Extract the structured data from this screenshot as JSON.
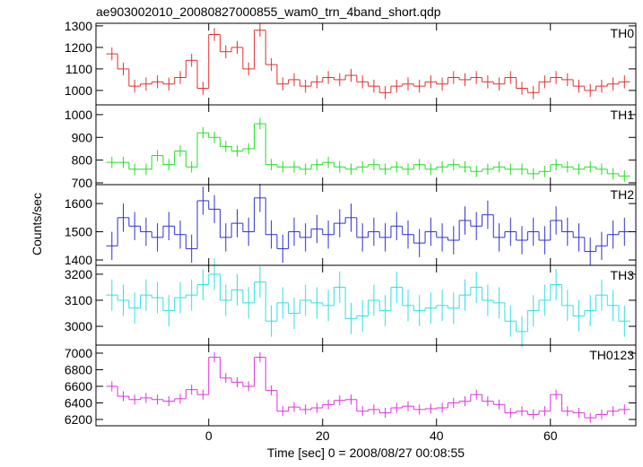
{
  "title": "ae903002010_20080827000855_wam0_trn_4band_short.qdp",
  "xlabel": "Time [sec] 0 = 2008/08/27 00:08:55",
  "ylabel": "Counts/sec",
  "chart_data": [
    {
      "type": "step",
      "label": "TH0",
      "color": "#e03030",
      "error": 30,
      "xlim": [
        -19.8,
        75
      ],
      "xticks": [
        0,
        20,
        40,
        60
      ],
      "ylim": [
        933,
        1312
      ],
      "yticks": [
        1000,
        1100,
        1200,
        1300
      ],
      "x": [
        -17,
        -15,
        -13,
        -11,
        -9,
        -7,
        -5,
        -3,
        -1,
        1,
        3,
        5,
        7,
        9,
        11,
        13,
        15,
        17,
        19,
        21,
        23,
        25,
        27,
        29,
        31,
        33,
        35,
        37,
        39,
        41,
        43,
        45,
        47,
        49,
        51,
        53,
        55,
        57,
        59,
        61,
        63,
        65,
        67,
        69,
        71,
        73
      ],
      "values": [
        1170,
        1100,
        1020,
        1030,
        1040,
        1030,
        1060,
        1140,
        1010,
        1260,
        1180,
        1200,
        1100,
        1280,
        1120,
        1030,
        1050,
        1020,
        1040,
        1060,
        1050,
        1070,
        1040,
        1020,
        990,
        1020,
        1030,
        1020,
        1040,
        1030,
        1060,
        1050,
        1060,
        1040,
        1030,
        1060,
        1010,
        990,
        1040,
        1060,
        1050,
        1020,
        1000,
        1020,
        1030,
        1040
      ]
    },
    {
      "type": "step",
      "label": "TH1",
      "color": "#20e020",
      "error": 25,
      "xlim": [
        -19.8,
        75
      ],
      "xticks": [
        0,
        20,
        40,
        60
      ],
      "ylim": [
        692,
        1043
      ],
      "yticks": [
        700,
        800,
        900,
        1000
      ],
      "x": [
        -17,
        -15,
        -13,
        -11,
        -9,
        -7,
        -5,
        -3,
        -1,
        1,
        3,
        5,
        7,
        9,
        11,
        13,
        15,
        17,
        19,
        21,
        23,
        25,
        27,
        29,
        31,
        33,
        35,
        37,
        39,
        41,
        43,
        45,
        47,
        49,
        51,
        53,
        55,
        57,
        59,
        61,
        63,
        65,
        67,
        69,
        71,
        73
      ],
      "values": [
        790,
        790,
        760,
        760,
        820,
        780,
        840,
        770,
        920,
        900,
        860,
        840,
        850,
        960,
        780,
        770,
        770,
        760,
        780,
        790,
        770,
        760,
        770,
        780,
        760,
        770,
        760,
        780,
        760,
        770,
        780,
        770,
        750,
        760,
        770,
        760,
        760,
        740,
        750,
        780,
        770,
        760,
        770,
        760,
        740,
        730
      ]
    },
    {
      "type": "step",
      "label": "TH2",
      "color": "#3030d0",
      "error": 50,
      "xlim": [
        -19.8,
        75
      ],
      "xticks": [
        0,
        20,
        40,
        60
      ],
      "ylim": [
        1381,
        1667
      ],
      "yticks": [
        1400,
        1500,
        1600
      ],
      "x": [
        -17,
        -15,
        -13,
        -11,
        -9,
        -7,
        -5,
        -3,
        -1,
        1,
        3,
        5,
        7,
        9,
        11,
        13,
        15,
        17,
        19,
        21,
        23,
        25,
        27,
        29,
        31,
        33,
        35,
        37,
        39,
        41,
        43,
        45,
        47,
        49,
        51,
        53,
        55,
        57,
        59,
        61,
        63,
        65,
        67,
        69,
        71,
        73
      ],
      "values": [
        1450,
        1550,
        1520,
        1500,
        1480,
        1520,
        1490,
        1440,
        1610,
        1580,
        1480,
        1530,
        1500,
        1620,
        1490,
        1440,
        1500,
        1480,
        1510,
        1490,
        1530,
        1550,
        1480,
        1500,
        1480,
        1520,
        1490,
        1460,
        1500,
        1480,
        1470,
        1540,
        1520,
        1560,
        1480,
        1500,
        1470,
        1500,
        1470,
        1540,
        1500,
        1480,
        1430,
        1450,
        1490,
        1500
      ]
    },
    {
      "type": "step",
      "label": "TH3",
      "color": "#30e0e0",
      "error": 60,
      "xlim": [
        -19.8,
        75
      ],
      "xticks": [
        0,
        20,
        40,
        60
      ],
      "ylim": [
        2928,
        3234
      ],
      "yticks": [
        3000,
        3100,
        3200
      ],
      "x": [
        -17,
        -15,
        -13,
        -11,
        -9,
        -7,
        -5,
        -3,
        -1,
        1,
        3,
        5,
        7,
        9,
        11,
        13,
        15,
        17,
        19,
        21,
        23,
        25,
        27,
        29,
        31,
        33,
        35,
        37,
        39,
        41,
        43,
        45,
        47,
        49,
        51,
        53,
        55,
        57,
        59,
        61,
        63,
        65,
        67,
        69,
        71,
        73
      ],
      "values": [
        3120,
        3100,
        3070,
        3120,
        3110,
        3060,
        3110,
        3120,
        3160,
        3200,
        3100,
        3140,
        3090,
        3170,
        3020,
        3090,
        3050,
        3100,
        3090,
        3080,
        3150,
        3030,
        3040,
        3100,
        3060,
        3150,
        3080,
        3060,
        3070,
        3080,
        3070,
        3120,
        3150,
        3100,
        3090,
        3020,
        2980,
        3060,
        3100,
        3160,
        3080,
        3040,
        3060,
        3120,
        3080,
        3020
      ]
    },
    {
      "type": "step",
      "label": "TH0123",
      "color": "#e030e0",
      "error": 60,
      "xlim": [
        -19.8,
        75
      ],
      "xticks": [
        0,
        20,
        40,
        60
      ],
      "ylim": [
        6124,
        7097
      ],
      "yticks": [
        6200,
        6400,
        6600,
        6800,
        7000
      ],
      "x": [
        -17,
        -15,
        -13,
        -11,
        -9,
        -7,
        -5,
        -3,
        -1,
        1,
        3,
        5,
        7,
        9,
        11,
        13,
        15,
        17,
        19,
        21,
        23,
        25,
        27,
        29,
        31,
        33,
        35,
        37,
        39,
        41,
        43,
        45,
        47,
        49,
        51,
        53,
        55,
        57,
        59,
        61,
        63,
        65,
        67,
        69,
        71,
        73
      ],
      "values": [
        6600,
        6480,
        6440,
        6460,
        6440,
        6420,
        6450,
        6560,
        6500,
        6950,
        6700,
        6650,
        6600,
        6950,
        6550,
        6300,
        6350,
        6320,
        6340,
        6380,
        6430,
        6440,
        6300,
        6320,
        6280,
        6340,
        6360,
        6320,
        6330,
        6340,
        6400,
        6420,
        6500,
        6420,
        6380,
        6280,
        6300,
        6260,
        6300,
        6500,
        6300,
        6280,
        6220,
        6260,
        6300,
        6320
      ]
    }
  ]
}
